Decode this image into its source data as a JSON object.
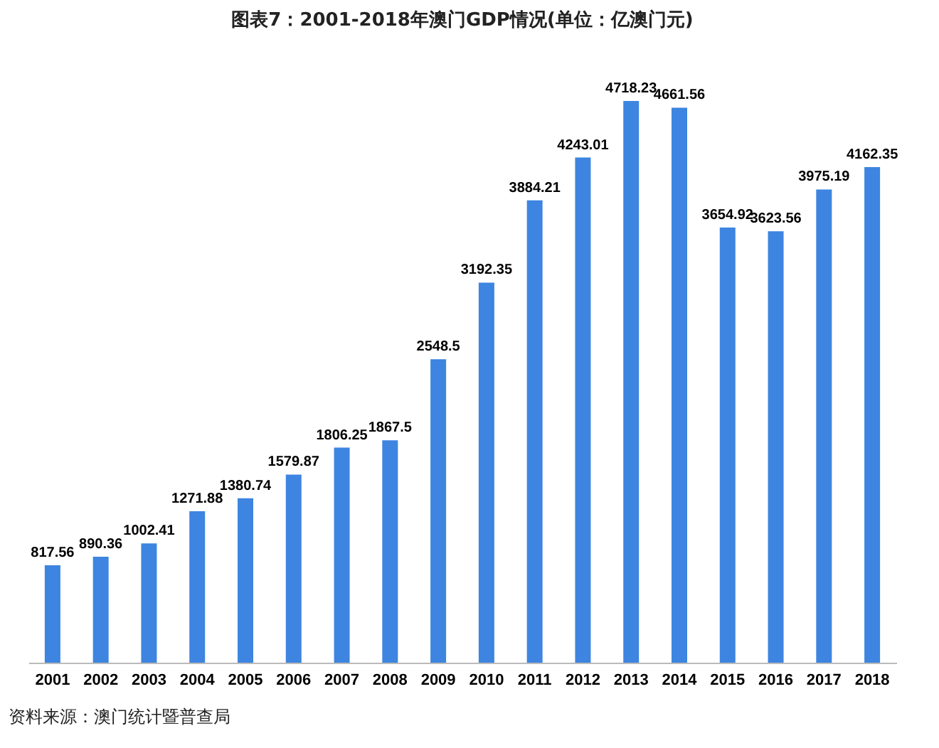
{
  "chart_data": {
    "type": "bar",
    "title": "图表7：2001-2018年澳门GDP情况(单位：亿澳门元)",
    "categories": [
      "2001",
      "2002",
      "2003",
      "2004",
      "2005",
      "2006",
      "2007",
      "2008",
      "2009",
      "2010",
      "2011",
      "2012",
      "2013",
      "2014",
      "2015",
      "2016",
      "2017",
      "2018"
    ],
    "values": [
      817.56,
      890.36,
      1002.41,
      1271.88,
      1380.74,
      1579.87,
      1806.25,
      1867.5,
      2548.5,
      3192.35,
      3884.21,
      4243.01,
      4718.23,
      4661.56,
      3654.92,
      3623.56,
      3975.19,
      4162.35
    ],
    "color": "#3d85e0",
    "data_labels": true,
    "grid": false,
    "tick_labels": "x",
    "annotations": [
      "资料来源：澳门统计暨普查局"
    ]
  }
}
